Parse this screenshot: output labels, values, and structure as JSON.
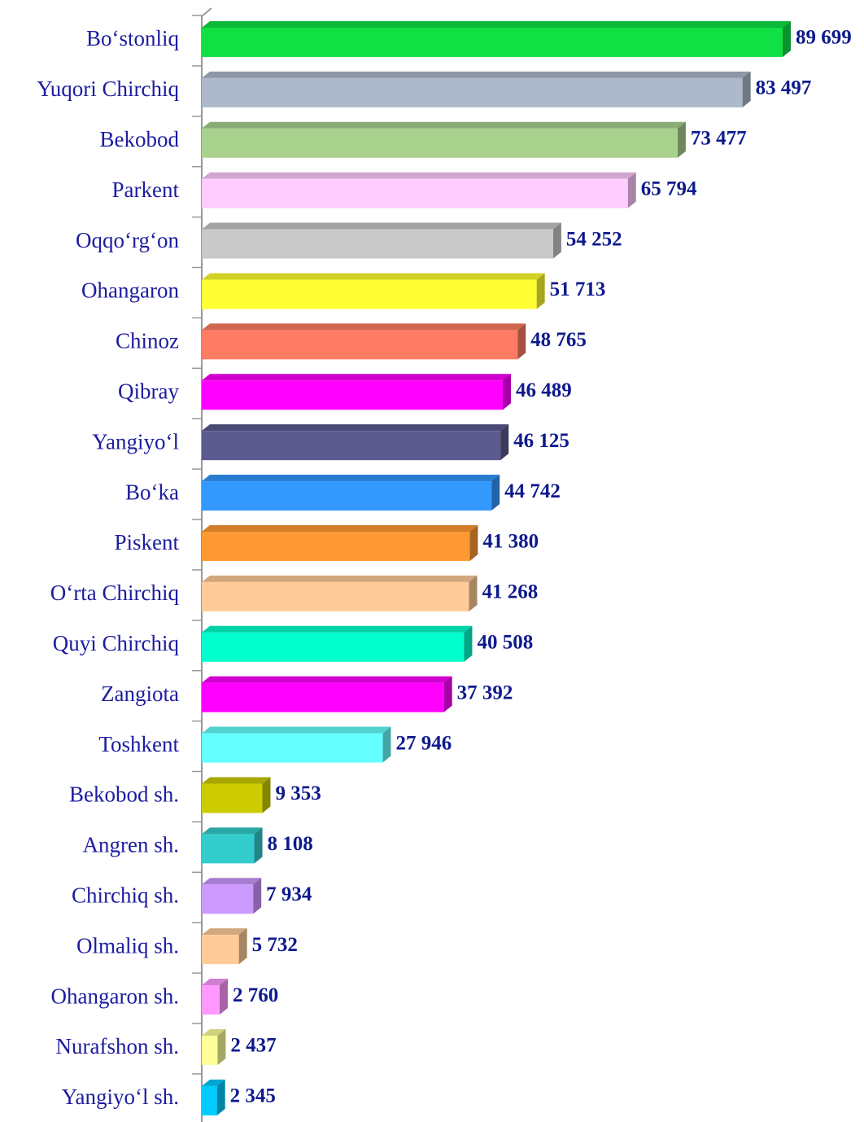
{
  "chart_data": {
    "type": "bar",
    "categories": [
      "Bo‘stonliq",
      "Yuqori Chirchiq",
      "Bekobod",
      "Parkent",
      "Oqqo‘rg‘on",
      "Ohangaron",
      "Chinoz",
      "Qibray",
      "Yangiyo‘l",
      "Bo‘ka",
      "Piskent",
      "O‘rta Chirchiq",
      "Quyi Chirchiq",
      "Zangiota",
      "Toshkent",
      "Bekobod sh.",
      "Angren sh.",
      "Chirchiq sh.",
      "Olmaliq sh.",
      "Ohangaron sh.",
      "Nurafshon sh.",
      "Yangiyo‘l sh."
    ],
    "values": [
      89699,
      83497,
      73477,
      65794,
      54252,
      51713,
      48765,
      46489,
      46125,
      44742,
      41380,
      41268,
      40508,
      37392,
      27946,
      9353,
      8108,
      7934,
      5732,
      2760,
      2437,
      2345
    ],
    "value_labels": [
      "89 699",
      "83 497",
      "73 477",
      "65 794",
      "54 252",
      "51 713",
      "48 765",
      "46 489",
      "46 125",
      "44 742",
      "41 380",
      "41 268",
      "40 508",
      "37 392",
      "27 946",
      "9 353",
      "8 108",
      "7 934",
      "5 732",
      "2 760",
      "2 437",
      "2 345"
    ],
    "colors": [
      "#11e044",
      "#adb9ca",
      "#a9d18e",
      "#ffccff",
      "#c9c9c9",
      "#ffff33",
      "#ff7c64",
      "#ff00ff",
      "#5b5b8f",
      "#3399ff",
      "#ff9933",
      "#ffcc99",
      "#00ffcc",
      "#ff00ff",
      "#66ffff",
      "#cccc00",
      "#33cccc",
      "#cc99ff",
      "#ffcc99",
      "#ff99ff",
      "#ffff99",
      "#00ccff"
    ]
  }
}
